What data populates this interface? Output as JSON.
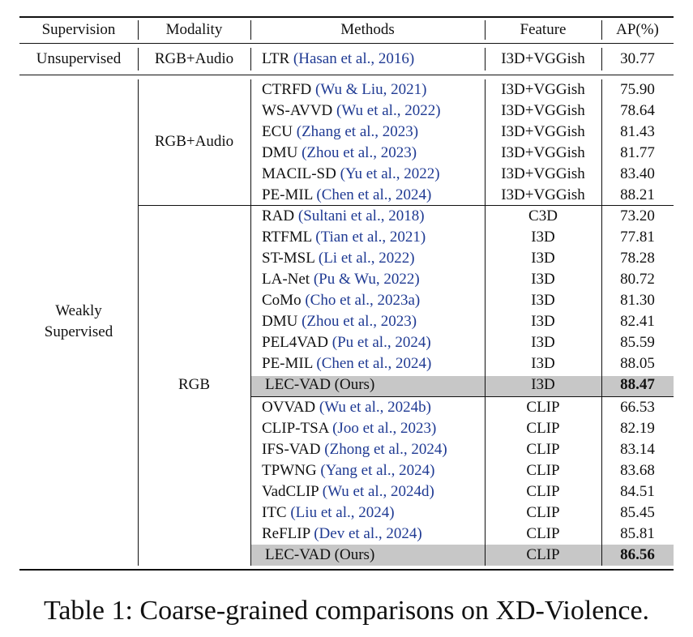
{
  "headers": [
    "Supervision",
    "Modality",
    "Methods",
    "Feature",
    "AP(%)"
  ],
  "unsupervised": {
    "supervision": "Unsupervised",
    "modality": "RGB+Audio",
    "method": "LTR",
    "cite": "(Hasan et al., 2016)",
    "feature": "I3D+VGGish",
    "ap": "30.77"
  },
  "weakly_label": [
    "Weakly",
    "Supervised"
  ],
  "modality_rgb_audio": "RGB+Audio",
  "modality_rgb": "RGB",
  "rows_rgb_audio": [
    {
      "method": "CTRFD",
      "cite": "(Wu & Liu, 2021)",
      "feature": "I3D+VGGish",
      "ap": "75.90"
    },
    {
      "method": "WS-AVVD",
      "cite": "(Wu et al., 2022)",
      "feature": "I3D+VGGish",
      "ap": "78.64"
    },
    {
      "method": "ECU",
      "cite": "(Zhang et al., 2023)",
      "feature": "I3D+VGGish",
      "ap": "81.43"
    },
    {
      "method": "DMU",
      "cite": "(Zhou et al., 2023)",
      "feature": "I3D+VGGish",
      "ap": "81.77"
    },
    {
      "method": "MACIL-SD",
      "cite": "(Yu et al., 2022)",
      "feature": "I3D+VGGish",
      "ap": "83.40"
    },
    {
      "method": "PE-MIL",
      "cite": "(Chen et al., 2024)",
      "feature": "I3D+VGGish",
      "ap": "88.21"
    }
  ],
  "rows_rgb_i3d": [
    {
      "method": "RAD",
      "cite": "(Sultani et al., 2018)",
      "feature": "C3D",
      "ap": "73.20"
    },
    {
      "method": "RTFML",
      "cite": "(Tian et al., 2021)",
      "feature": "I3D",
      "ap": "77.81"
    },
    {
      "method": "ST-MSL",
      "cite": "(Li et al., 2022)",
      "feature": "I3D",
      "ap": "78.28"
    },
    {
      "method": "LA-Net",
      "cite": "(Pu & Wu, 2022)",
      "feature": "I3D",
      "ap": "80.72"
    },
    {
      "method": "CoMo",
      "cite": "(Cho et al., 2023a)",
      "feature": "I3D",
      "ap": "81.30"
    },
    {
      "method": "DMU",
      "cite": "(Zhou et al., 2023)",
      "feature": "I3D",
      "ap": "82.41"
    },
    {
      "method": "PEL4VAD",
      "cite": "(Pu et al., 2024)",
      "feature": "I3D",
      "ap": "85.59"
    },
    {
      "method": "PE-MIL",
      "cite": "(Chen et al., 2024)",
      "feature": "I3D",
      "ap": "88.05"
    },
    {
      "method": "LEC-VAD (Ours)",
      "cite": "",
      "feature": "I3D",
      "ap": "88.47",
      "ours": true
    }
  ],
  "rows_rgb_clip": [
    {
      "method": "OVVAD",
      "cite": "(Wu et al., 2024b)",
      "feature": "CLIP",
      "ap": "66.53"
    },
    {
      "method": "CLIP-TSA",
      "cite": "(Joo et al., 2023)",
      "feature": "CLIP",
      "ap": "82.19"
    },
    {
      "method": "IFS-VAD",
      "cite": "(Zhong et al., 2024)",
      "feature": "CLIP",
      "ap": "83.14"
    },
    {
      "method": "TPWNG",
      "cite": "(Yang et al., 2024)",
      "feature": "CLIP",
      "ap": "83.68"
    },
    {
      "method": "VadCLIP",
      "cite": "(Wu et al., 2024d)",
      "feature": "CLIP",
      "ap": "84.51"
    },
    {
      "method": "ITC",
      "cite": "(Liu et al., 2024)",
      "feature": "CLIP",
      "ap": "85.45"
    },
    {
      "method": "ReFLIP",
      "cite": "(Dev et al., 2024)",
      "feature": "CLIP",
      "ap": "85.81"
    },
    {
      "method": "LEC-VAD (Ours)",
      "cite": "",
      "feature": "CLIP",
      "ap": "86.56",
      "ours": true
    }
  ],
  "caption": "Table 1: Coarse-grained comparisons on XD-Violence.",
  "colors": {
    "highlight": "#c7c7c7",
    "citation": "#1f3a93"
  }
}
